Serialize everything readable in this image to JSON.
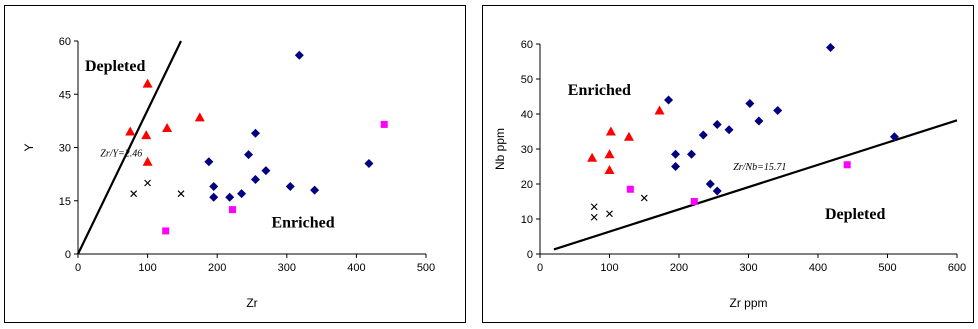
{
  "chart_data": [
    {
      "type": "scatter",
      "xlabel": "Zr",
      "ylabel": "Y",
      "xlim": [
        0,
        500
      ],
      "ylim": [
        0,
        60
      ],
      "xticks": [
        "0",
        "100",
        "200",
        "300",
        "400",
        "500"
      ],
      "yticks": [
        "0",
        "15",
        "30",
        "45",
        "60"
      ],
      "grid": false,
      "annotations": {
        "depleted": "Depleted",
        "enriched": "Enriched",
        "ratio": "Zr/Y=2.46"
      },
      "trendline": {
        "from": [
          0,
          0
        ],
        "to": [
          148,
          60
        ]
      },
      "series": [
        {
          "marker": "triangle",
          "color": "#ff0000",
          "points": [
            [
              100,
              48
            ],
            [
              75,
              34.5
            ],
            [
              98,
              33.5
            ],
            [
              128,
              35.5
            ],
            [
              175,
              38.5
            ],
            [
              100,
              26
            ]
          ]
        },
        {
          "marker": "diamond",
          "color": "#000080",
          "points": [
            [
              318,
              56
            ],
            [
              255,
              34
            ],
            [
              245,
              28
            ],
            [
              270,
              23.5
            ],
            [
              255,
              21
            ],
            [
              188,
              26
            ],
            [
              195,
              19
            ],
            [
              195,
              16
            ],
            [
              218,
              16
            ],
            [
              235,
              17
            ],
            [
              305,
              19
            ],
            [
              340,
              18
            ],
            [
              418,
              25.5
            ]
          ]
        },
        {
          "marker": "square",
          "color": "#ff00ff",
          "points": [
            [
              440,
              36.5
            ],
            [
              222,
              12.5
            ],
            [
              126,
              6.5
            ]
          ]
        },
        {
          "marker": "x",
          "color": "#000000",
          "points": [
            [
              100,
              20
            ],
            [
              148,
              17
            ],
            [
              80,
              17
            ]
          ]
        }
      ]
    },
    {
      "type": "scatter",
      "xlabel": "Zr ppm",
      "ylabel": "Nb ppm",
      "xlim": [
        0,
        600
      ],
      "ylim": [
        0,
        60
      ],
      "xticks": [
        "0",
        "100",
        "200",
        "300",
        "400",
        "500",
        "600"
      ],
      "yticks": [
        "0",
        "10",
        "20",
        "30",
        "40",
        "50",
        "60"
      ],
      "grid": false,
      "annotations": {
        "depleted": "Depleted",
        "enriched": "Enriched",
        "ratio": "Zr/Nb=15.71"
      },
      "trendline": {
        "from": [
          20,
          1.3
        ],
        "to": [
          600,
          38.2
        ]
      },
      "series": [
        {
          "marker": "triangle",
          "color": "#ff0000",
          "points": [
            [
              75,
              27.5
            ],
            [
              102,
              35
            ],
            [
              128,
              33.5
            ],
            [
              100,
              28.5
            ],
            [
              100,
              24
            ],
            [
              172,
              41
            ]
          ]
        },
        {
          "marker": "diamond",
          "color": "#000080",
          "points": [
            [
              185,
              44
            ],
            [
              195,
              28.5
            ],
            [
              195,
              25
            ],
            [
              218,
              28.5
            ],
            [
              235,
              34
            ],
            [
              255,
              37
            ],
            [
              272,
              35.5
            ],
            [
              302,
              43
            ],
            [
              315,
              38
            ],
            [
              342,
              41
            ],
            [
              245,
              20
            ],
            [
              255,
              18
            ],
            [
              418,
              59
            ],
            [
              510,
              33.5
            ]
          ]
        },
        {
          "marker": "square",
          "color": "#ff00ff",
          "points": [
            [
              130,
              18.5
            ],
            [
              222,
              15
            ],
            [
              442,
              25.5
            ]
          ]
        },
        {
          "marker": "x",
          "color": "#000000",
          "points": [
            [
              150,
              16
            ],
            [
              100,
              11.5
            ],
            [
              78,
              13.5
            ],
            [
              78,
              10.5
            ]
          ]
        }
      ]
    }
  ]
}
